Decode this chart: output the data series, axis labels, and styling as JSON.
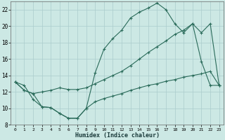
{
  "xlabel": "Humidex (Indice chaleur)",
  "bg_color": "#cce8e4",
  "grid_color": "#aacccc",
  "line_color": "#2a6b5a",
  "xlim": [
    -0.5,
    23.5
  ],
  "ylim": [
    8,
    23
  ],
  "xticks": [
    0,
    1,
    2,
    3,
    4,
    5,
    6,
    7,
    8,
    9,
    10,
    11,
    12,
    13,
    14,
    15,
    16,
    17,
    18,
    19,
    20,
    21,
    22,
    23
  ],
  "yticks": [
    8,
    10,
    12,
    14,
    16,
    18,
    20,
    22
  ],
  "line1_x": [
    0,
    1,
    2,
    3,
    4,
    5,
    6,
    7,
    8,
    9,
    10,
    11,
    12,
    13,
    14,
    15,
    16,
    17,
    18,
    19,
    20,
    21,
    22,
    23
  ],
  "line1_y": [
    13.2,
    12.8,
    11.1,
    10.2,
    10.1,
    9.4,
    8.8,
    8.8,
    10.0,
    14.3,
    17.2,
    18.5,
    19.5,
    21.0,
    21.7,
    22.2,
    22.8,
    22.0,
    20.3,
    19.2,
    20.3,
    15.7,
    12.8,
    12.8
  ],
  "line2_x": [
    0,
    1,
    2,
    3,
    4,
    5,
    6,
    7,
    8,
    9,
    10,
    11,
    12,
    13,
    14,
    15,
    16,
    17,
    18,
    19,
    20,
    21,
    22,
    23
  ],
  "line2_y": [
    13.2,
    12.2,
    11.8,
    12.0,
    12.2,
    12.5,
    12.3,
    12.3,
    12.5,
    13.0,
    13.5,
    14.0,
    14.5,
    15.2,
    16.0,
    16.8,
    17.5,
    18.2,
    19.0,
    19.5,
    20.3,
    19.2,
    20.3,
    12.8
  ],
  "line3_x": [
    0,
    1,
    2,
    3,
    4,
    5,
    6,
    7,
    8,
    9,
    10,
    11,
    12,
    13,
    14,
    15,
    16,
    17,
    18,
    19,
    20,
    21,
    22,
    23
  ],
  "line3_y": [
    13.2,
    12.2,
    11.8,
    10.2,
    10.1,
    9.4,
    8.8,
    8.8,
    10.0,
    10.8,
    11.2,
    11.5,
    11.8,
    12.2,
    12.5,
    12.8,
    13.0,
    13.3,
    13.5,
    13.8,
    14.0,
    14.2,
    14.5,
    12.8
  ]
}
